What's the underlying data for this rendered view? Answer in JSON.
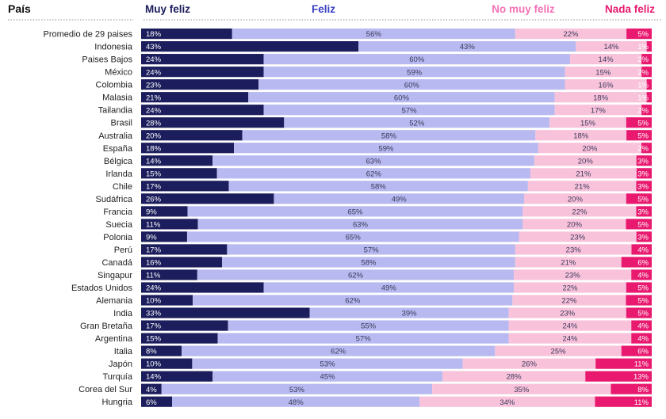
{
  "chart_data": {
    "type": "bar",
    "orientation": "horizontal",
    "stacked": true,
    "percent": true,
    "legend_placement": "top",
    "category_header": "País",
    "series": [
      {
        "name": "Muy feliz",
        "color": "#1b1d5c",
        "label_color": "#ffffff"
      },
      {
        "name": "Feliz",
        "color": "#b7b9f0",
        "label_color": "#3a3a5a"
      },
      {
        "name": "No muy feliz",
        "color": "#f9c2db",
        "label_color": "#3a3a5a"
      },
      {
        "name": "Nada feliz",
        "color": "#e8196f",
        "label_color": "#ffffff"
      }
    ],
    "header_colors": [
      "#1b1d5c",
      "#3a3fc4",
      "#f472b6",
      "#e8196f"
    ],
    "categories": [
      "Promedio de 29 paises",
      "Indonesia",
      "Paises Bajos",
      "México",
      "Colombia",
      "Malasia",
      "Tailandia",
      "Brasil",
      "Australia",
      "España",
      "Bélgica",
      "Irlanda",
      "Chile",
      "Sudáfrica",
      "Francia",
      "Suecia",
      "Polonia",
      "Perú",
      "Canadá",
      "Singapur",
      "Estados Unidos",
      "Alemania",
      "India",
      "Gran Bretaña",
      "Argentina",
      "Italia",
      "Japón",
      "Turquía",
      "Corea del Sur",
      "Hungria"
    ],
    "values": [
      [
        18,
        56,
        22,
        5
      ],
      [
        43,
        43,
        14,
        1
      ],
      [
        24,
        60,
        14,
        2
      ],
      [
        24,
        59,
        15,
        2
      ],
      [
        23,
        60,
        16,
        1
      ],
      [
        21,
        60,
        18,
        1
      ],
      [
        24,
        57,
        17,
        2
      ],
      [
        28,
        52,
        15,
        5
      ],
      [
        20,
        58,
        18,
        5
      ],
      [
        18,
        59,
        20,
        2
      ],
      [
        14,
        63,
        20,
        3
      ],
      [
        15,
        62,
        21,
        3
      ],
      [
        17,
        58,
        21,
        3
      ],
      [
        26,
        49,
        20,
        5
      ],
      [
        9,
        65,
        22,
        3
      ],
      [
        11,
        63,
        20,
        5
      ],
      [
        9,
        65,
        23,
        3
      ],
      [
        17,
        57,
        23,
        4
      ],
      [
        16,
        58,
        21,
        6
      ],
      [
        11,
        62,
        23,
        4
      ],
      [
        24,
        49,
        22,
        5
      ],
      [
        10,
        62,
        22,
        5
      ],
      [
        33,
        39,
        23,
        5
      ],
      [
        17,
        55,
        24,
        4
      ],
      [
        15,
        57,
        24,
        4
      ],
      [
        8,
        62,
        25,
        6
      ],
      [
        10,
        53,
        26,
        11
      ],
      [
        14,
        45,
        28,
        13
      ],
      [
        4,
        53,
        35,
        8
      ],
      [
        6,
        48,
        34,
        11
      ]
    ]
  }
}
